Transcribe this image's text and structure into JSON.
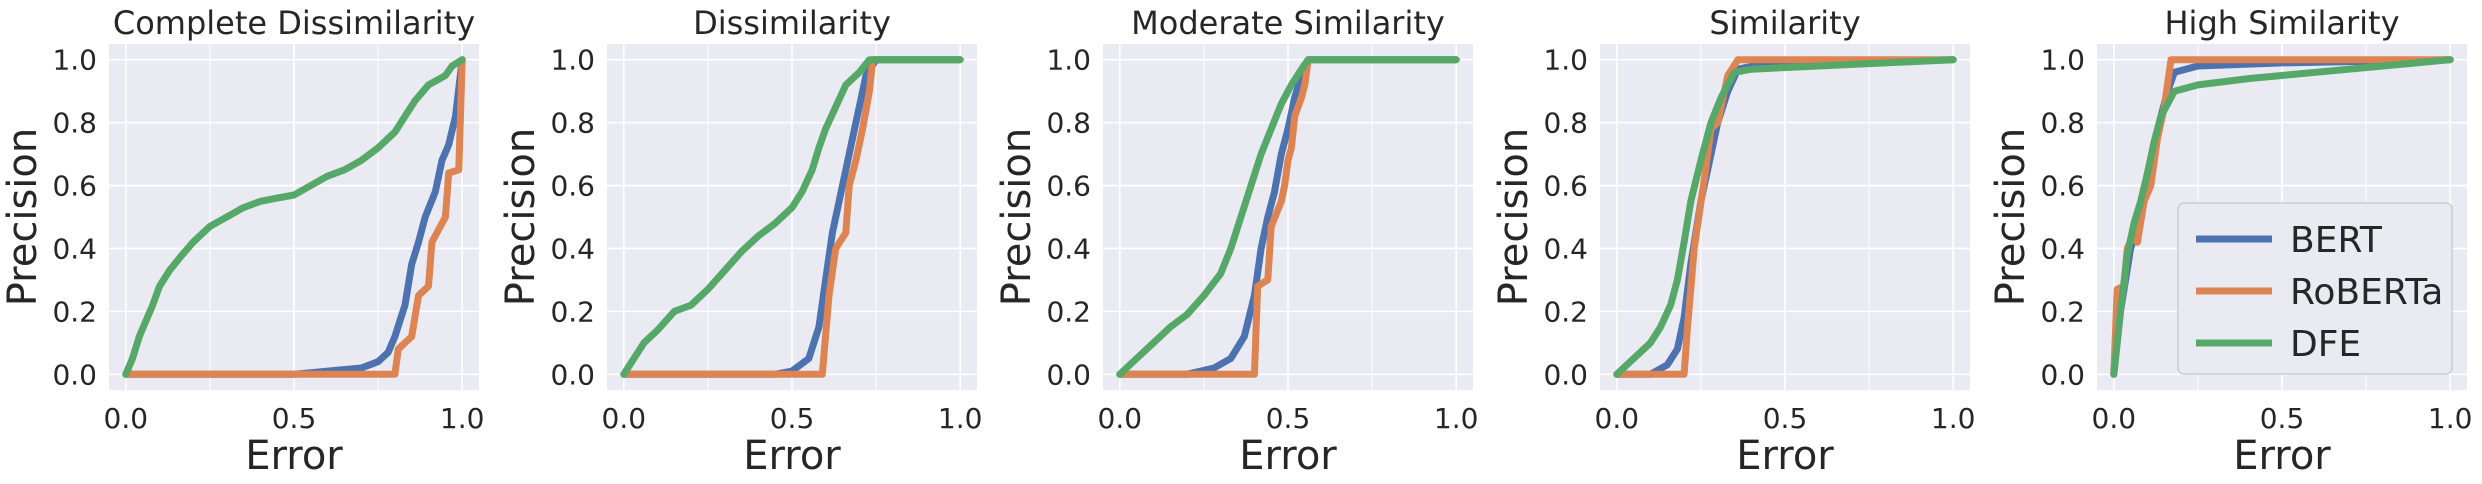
{
  "figure": {
    "xlabel": "Error",
    "ylabel": "Precision"
  },
  "chart_data": [
    {
      "type": "line",
      "title": "Complete Dissimilarity",
      "xlabel": "Error",
      "ylabel": "Precision",
      "xlim": [
        -0.05,
        1.05
      ],
      "ylim": [
        -0.05,
        1.05
      ],
      "xticks": [
        "0.0",
        "0.5",
        "1.0"
      ],
      "yticks": [
        "0.0",
        "0.2",
        "0.4",
        "0.6",
        "0.8",
        "1.0"
      ],
      "grid": true,
      "series": [
        {
          "name": "BERT",
          "color": "#4c72b0",
          "points": [
            [
              0,
              0
            ],
            [
              0.5,
              0
            ],
            [
              0.6,
              0.01
            ],
            [
              0.7,
              0.02
            ],
            [
              0.75,
              0.04
            ],
            [
              0.78,
              0.07
            ],
            [
              0.8,
              0.12
            ],
            [
              0.83,
              0.22
            ],
            [
              0.85,
              0.35
            ],
            [
              0.87,
              0.42
            ],
            [
              0.89,
              0.5
            ],
            [
              0.92,
              0.58
            ],
            [
              0.94,
              0.68
            ],
            [
              0.96,
              0.73
            ],
            [
              0.98,
              0.82
            ],
            [
              1.0,
              1.0
            ]
          ]
        },
        {
          "name": "RoBERTa",
          "color": "#dd8452",
          "points": [
            [
              0,
              0
            ],
            [
              0.8,
              0
            ],
            [
              0.81,
              0.08
            ],
            [
              0.85,
              0.12
            ],
            [
              0.87,
              0.25
            ],
            [
              0.9,
              0.28
            ],
            [
              0.91,
              0.42
            ],
            [
              0.95,
              0.5
            ],
            [
              0.96,
              0.64
            ],
            [
              0.99,
              0.65
            ],
            [
              1.0,
              1.0
            ]
          ]
        },
        {
          "name": "DFE",
          "color": "#55a868",
          "points": [
            [
              0,
              0
            ],
            [
              0.02,
              0.05
            ],
            [
              0.04,
              0.12
            ],
            [
              0.06,
              0.17
            ],
            [
              0.08,
              0.22
            ],
            [
              0.1,
              0.28
            ],
            [
              0.13,
              0.33
            ],
            [
              0.16,
              0.37
            ],
            [
              0.2,
              0.42
            ],
            [
              0.25,
              0.47
            ],
            [
              0.3,
              0.5
            ],
            [
              0.35,
              0.53
            ],
            [
              0.4,
              0.55
            ],
            [
              0.45,
              0.56
            ],
            [
              0.5,
              0.57
            ],
            [
              0.55,
              0.6
            ],
            [
              0.6,
              0.63
            ],
            [
              0.65,
              0.65
            ],
            [
              0.7,
              0.68
            ],
            [
              0.75,
              0.72
            ],
            [
              0.8,
              0.77
            ],
            [
              0.83,
              0.82
            ],
            [
              0.86,
              0.87
            ],
            [
              0.9,
              0.92
            ],
            [
              0.95,
              0.95
            ],
            [
              0.97,
              0.98
            ],
            [
              1.0,
              1.0
            ]
          ]
        }
      ]
    },
    {
      "type": "line",
      "title": "Dissimilarity",
      "xlabel": "Error",
      "ylabel": "Precision",
      "xlim": [
        -0.05,
        1.05
      ],
      "ylim": [
        -0.05,
        1.05
      ],
      "xticks": [
        "0.0",
        "0.5",
        "1.0"
      ],
      "yticks": [
        "0.0",
        "0.2",
        "0.4",
        "0.6",
        "0.8",
        "1.0"
      ],
      "grid": true,
      "series": [
        {
          "name": "BERT",
          "color": "#4c72b0",
          "points": [
            [
              0,
              0
            ],
            [
              0.45,
              0
            ],
            [
              0.5,
              0.01
            ],
            [
              0.55,
              0.05
            ],
            [
              0.58,
              0.15
            ],
            [
              0.6,
              0.3
            ],
            [
              0.62,
              0.45
            ],
            [
              0.65,
              0.6
            ],
            [
              0.68,
              0.75
            ],
            [
              0.7,
              0.85
            ],
            [
              0.72,
              0.95
            ],
            [
              0.75,
              1.0
            ],
            [
              1.0,
              1.0
            ]
          ]
        },
        {
          "name": "RoBERTa",
          "color": "#dd8452",
          "points": [
            [
              0,
              0
            ],
            [
              0.59,
              0
            ],
            [
              0.61,
              0.25
            ],
            [
              0.63,
              0.4
            ],
            [
              0.66,
              0.45
            ],
            [
              0.67,
              0.6
            ],
            [
              0.69,
              0.68
            ],
            [
              0.71,
              0.78
            ],
            [
              0.73,
              0.9
            ],
            [
              0.74,
              1.0
            ],
            [
              1.0,
              1.0
            ]
          ]
        },
        {
          "name": "DFE",
          "color": "#55a868",
          "points": [
            [
              0,
              0
            ],
            [
              0.03,
              0.05
            ],
            [
              0.06,
              0.1
            ],
            [
              0.1,
              0.14
            ],
            [
              0.15,
              0.2
            ],
            [
              0.2,
              0.22
            ],
            [
              0.25,
              0.27
            ],
            [
              0.3,
              0.33
            ],
            [
              0.35,
              0.39
            ],
            [
              0.4,
              0.44
            ],
            [
              0.45,
              0.48
            ],
            [
              0.5,
              0.53
            ],
            [
              0.53,
              0.58
            ],
            [
              0.56,
              0.65
            ],
            [
              0.58,
              0.72
            ],
            [
              0.6,
              0.78
            ],
            [
              0.63,
              0.85
            ],
            [
              0.66,
              0.92
            ],
            [
              0.7,
              0.96
            ],
            [
              0.73,
              1.0
            ],
            [
              1.0,
              1.0
            ]
          ]
        }
      ]
    },
    {
      "type": "line",
      "title": "Moderate Similarity",
      "xlabel": "Error",
      "ylabel": "Precision",
      "xlim": [
        -0.05,
        1.05
      ],
      "ylim": [
        -0.05,
        1.05
      ],
      "xticks": [
        "0.0",
        "0.5",
        "1.0"
      ],
      "yticks": [
        "0.0",
        "0.2",
        "0.4",
        "0.6",
        "0.8",
        "1.0"
      ],
      "grid": true,
      "series": [
        {
          "name": "BERT",
          "color": "#4c72b0",
          "points": [
            [
              0,
              0
            ],
            [
              0.2,
              0
            ],
            [
              0.28,
              0.02
            ],
            [
              0.33,
              0.05
            ],
            [
              0.37,
              0.12
            ],
            [
              0.4,
              0.25
            ],
            [
              0.42,
              0.4
            ],
            [
              0.44,
              0.5
            ],
            [
              0.46,
              0.58
            ],
            [
              0.48,
              0.7
            ],
            [
              0.5,
              0.78
            ],
            [
              0.52,
              0.88
            ],
            [
              0.54,
              0.95
            ],
            [
              0.56,
              1.0
            ],
            [
              1.0,
              1.0
            ]
          ]
        },
        {
          "name": "RoBERTa",
          "color": "#dd8452",
          "points": [
            [
              0,
              0
            ],
            [
              0.4,
              0
            ],
            [
              0.41,
              0.28
            ],
            [
              0.44,
              0.3
            ],
            [
              0.45,
              0.47
            ],
            [
              0.48,
              0.55
            ],
            [
              0.49,
              0.6
            ],
            [
              0.5,
              0.68
            ],
            [
              0.51,
              0.72
            ],
            [
              0.52,
              0.82
            ],
            [
              0.54,
              0.88
            ],
            [
              0.55,
              0.92
            ],
            [
              0.56,
              1.0
            ],
            [
              1.0,
              1.0
            ]
          ]
        },
        {
          "name": "DFE",
          "color": "#55a868",
          "points": [
            [
              0,
              0
            ],
            [
              0.05,
              0.05
            ],
            [
              0.1,
              0.1
            ],
            [
              0.15,
              0.15
            ],
            [
              0.2,
              0.19
            ],
            [
              0.25,
              0.25
            ],
            [
              0.3,
              0.32
            ],
            [
              0.33,
              0.4
            ],
            [
              0.36,
              0.5
            ],
            [
              0.39,
              0.6
            ],
            [
              0.42,
              0.7
            ],
            [
              0.45,
              0.78
            ],
            [
              0.48,
              0.86
            ],
            [
              0.51,
              0.92
            ],
            [
              0.54,
              0.97
            ],
            [
              0.56,
              1.0
            ],
            [
              1.0,
              1.0
            ]
          ]
        }
      ]
    },
    {
      "type": "line",
      "title": "Similarity",
      "xlabel": "Error",
      "ylabel": "Precision",
      "xlim": [
        -0.05,
        1.05
      ],
      "ylim": [
        -0.05,
        1.05
      ],
      "xticks": [
        "0.0",
        "0.5",
        "1.0"
      ],
      "yticks": [
        "0.0",
        "0.2",
        "0.4",
        "0.6",
        "0.8",
        "1.0"
      ],
      "grid": true,
      "series": [
        {
          "name": "BERT",
          "color": "#4c72b0",
          "points": [
            [
              0,
              0
            ],
            [
              0.1,
              0
            ],
            [
              0.15,
              0.03
            ],
            [
              0.18,
              0.08
            ],
            [
              0.2,
              0.18
            ],
            [
              0.22,
              0.35
            ],
            [
              0.25,
              0.55
            ],
            [
              0.28,
              0.7
            ],
            [
              0.3,
              0.8
            ],
            [
              0.33,
              0.9
            ],
            [
              0.36,
              0.97
            ],
            [
              0.45,
              0.99
            ],
            [
              1.0,
              1.0
            ]
          ]
        },
        {
          "name": "RoBERTa",
          "color": "#dd8452",
          "points": [
            [
              0,
              0
            ],
            [
              0.2,
              0
            ],
            [
              0.21,
              0.15
            ],
            [
              0.23,
              0.4
            ],
            [
              0.26,
              0.62
            ],
            [
              0.28,
              0.78
            ],
            [
              0.3,
              0.8
            ],
            [
              0.33,
              0.95
            ],
            [
              0.36,
              1.0
            ],
            [
              1.0,
              1.0
            ]
          ]
        },
        {
          "name": "DFE",
          "color": "#55a868",
          "points": [
            [
              0,
              0
            ],
            [
              0.03,
              0.03
            ],
            [
              0.06,
              0.06
            ],
            [
              0.1,
              0.1
            ],
            [
              0.13,
              0.15
            ],
            [
              0.16,
              0.22
            ],
            [
              0.18,
              0.3
            ],
            [
              0.2,
              0.42
            ],
            [
              0.22,
              0.55
            ],
            [
              0.25,
              0.68
            ],
            [
              0.28,
              0.8
            ],
            [
              0.31,
              0.88
            ],
            [
              0.35,
              0.96
            ],
            [
              0.4,
              0.97
            ],
            [
              0.6,
              0.98
            ],
            [
              1.0,
              1.0
            ]
          ]
        }
      ]
    },
    {
      "type": "line",
      "title": "High Similarity",
      "xlabel": "Error",
      "ylabel": "Precision",
      "xlim": [
        -0.05,
        1.05
      ],
      "ylim": [
        -0.05,
        1.05
      ],
      "xticks": [
        "0.0",
        "0.5",
        "1.0"
      ],
      "yticks": [
        "0.0",
        "0.2",
        "0.4",
        "0.6",
        "0.8",
        "1.0"
      ],
      "grid": true,
      "legend": {
        "position": "lower right",
        "entries": [
          "BERT",
          "RoBERTa",
          "DFE"
        ]
      },
      "series": [
        {
          "name": "BERT",
          "color": "#4c72b0",
          "points": [
            [
              0,
              0
            ],
            [
              0.02,
              0.2
            ],
            [
              0.05,
              0.4
            ],
            [
              0.08,
              0.5
            ],
            [
              0.1,
              0.6
            ],
            [
              0.12,
              0.72
            ],
            [
              0.14,
              0.82
            ],
            [
              0.16,
              0.9
            ],
            [
              0.18,
              0.96
            ],
            [
              0.25,
              0.98
            ],
            [
              0.5,
              0.99
            ],
            [
              1.0,
              1.0
            ]
          ]
        },
        {
          "name": "RoBERTa",
          "color": "#dd8452",
          "points": [
            [
              0,
              0
            ],
            [
              0.01,
              0.27
            ],
            [
              0.03,
              0.28
            ],
            [
              0.04,
              0.4
            ],
            [
              0.06,
              0.45
            ],
            [
              0.07,
              0.42
            ],
            [
              0.09,
              0.55
            ],
            [
              0.11,
              0.6
            ],
            [
              0.13,
              0.75
            ],
            [
              0.15,
              0.85
            ],
            [
              0.17,
              1.0
            ],
            [
              1.0,
              1.0
            ]
          ]
        },
        {
          "name": "DFE",
          "color": "#55a868",
          "points": [
            [
              0,
              0
            ],
            [
              0.02,
              0.2
            ],
            [
              0.04,
              0.38
            ],
            [
              0.06,
              0.48
            ],
            [
              0.08,
              0.55
            ],
            [
              0.1,
              0.64
            ],
            [
              0.12,
              0.74
            ],
            [
              0.14,
              0.82
            ],
            [
              0.16,
              0.86
            ],
            [
              0.18,
              0.9
            ],
            [
              0.25,
              0.92
            ],
            [
              0.4,
              0.94
            ],
            [
              0.6,
              0.96
            ],
            [
              0.8,
              0.98
            ],
            [
              1.0,
              1.0
            ]
          ]
        }
      ]
    }
  ]
}
